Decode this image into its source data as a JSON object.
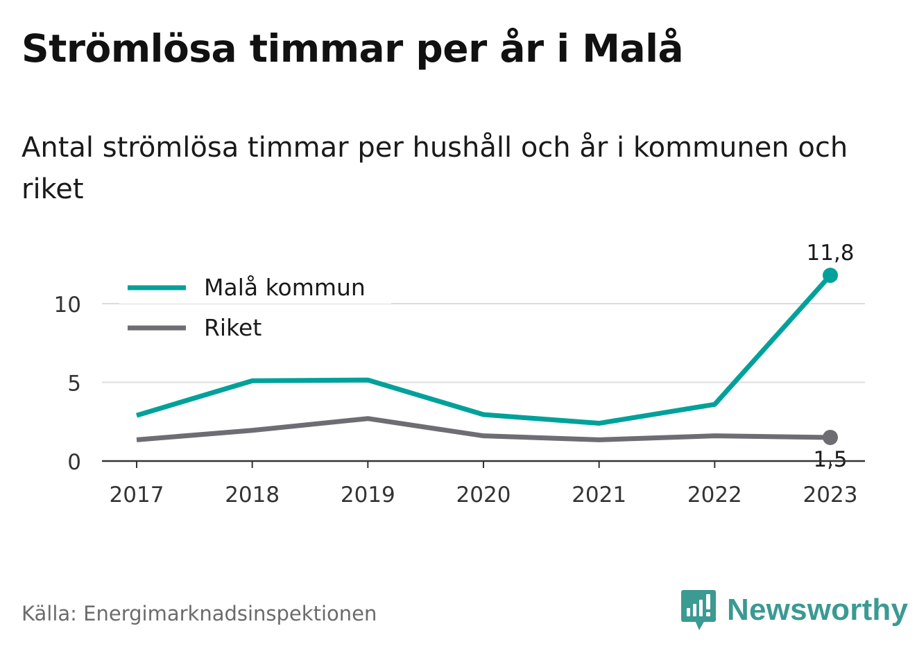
{
  "title": "Strömlösa timmar per år i Malå",
  "subtitle": "Antal strömlösa timmar per hushåll och år i kommunen och riket",
  "source": "Källa: Energimarknadsinspektionen",
  "brand": "Newsworthy",
  "colors": {
    "mala": "#00a19a",
    "riket": "#6e6d73",
    "grid": "#dcdcdc",
    "axis": "#333333",
    "brand": "#3b9a92"
  },
  "chart_data": {
    "type": "line",
    "categories": [
      "2017",
      "2018",
      "2019",
      "2020",
      "2021",
      "2022",
      "2023"
    ],
    "series": [
      {
        "name": "Malå kommun",
        "color_key": "mala",
        "values": [
          2.9,
          5.1,
          5.15,
          2.95,
          2.4,
          3.6,
          11.8
        ],
        "end_label": "11,8"
      },
      {
        "name": "Riket",
        "color_key": "riket",
        "values": [
          1.35,
          1.95,
          2.7,
          1.6,
          1.35,
          1.6,
          1.5
        ],
        "end_label": "1,5"
      }
    ],
    "y_ticks": [
      0,
      5,
      10
    ],
    "y_tick_labels": [
      "0",
      "5",
      "10"
    ],
    "ylim": [
      0,
      12.5
    ],
    "grid": true,
    "legend_position": "top-left"
  }
}
